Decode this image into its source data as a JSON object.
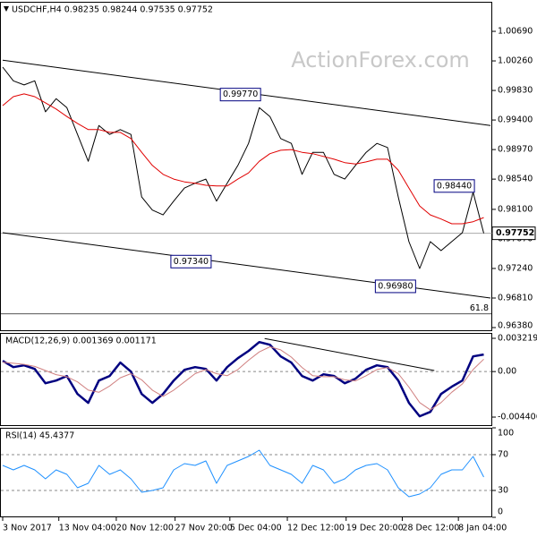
{
  "chart_data": [
    {
      "type": "line",
      "title": "USDCHF,H4 0.98235 0.98244 0.97535 0.97752",
      "watermark": "ActionForex.com",
      "xlim": [
        0,
        365
      ],
      "ylim": [
        0.96328,
        1.0112
      ],
      "yticks": [
        {
          "value": 1.0069,
          "label": "1.00690"
        },
        {
          "value": 1.0026,
          "label": "1.00260"
        },
        {
          "value": 0.9983,
          "label": "0.99830"
        },
        {
          "value": 0.994,
          "label": "0.99400"
        },
        {
          "value": 0.9897,
          "label": "0.98970"
        },
        {
          "value": 0.9854,
          "label": "0.98540"
        },
        {
          "value": 0.981,
          "label": "0.98100"
        },
        {
          "value": 0.9767,
          "label": "0.97670"
        },
        {
          "value": 0.9724,
          "label": "0.97240"
        },
        {
          "value": 0.9681,
          "label": "0.96810"
        },
        {
          "value": 0.9638,
          "label": "0.96380"
        }
      ],
      "x": [
        0,
        8,
        16,
        24,
        32,
        40,
        48,
        56,
        64,
        72,
        80,
        88,
        96,
        104,
        112,
        120,
        128,
        136,
        144,
        152,
        160,
        168,
        176,
        184,
        192,
        200,
        208,
        216,
        224,
        232,
        240,
        248,
        256,
        264,
        272,
        280,
        288,
        296,
        304,
        312,
        320,
        328,
        336,
        344,
        352,
        360
      ],
      "series": [
        {
          "name": "Close",
          "color": "#000000",
          "width": 1,
          "values": [
            1.0017,
            0.9997,
            0.9991,
            0.9997,
            0.9952,
            0.9971,
            0.9958,
            0.9919,
            0.988,
            0.9932,
            0.9919,
            0.9926,
            0.9919,
            0.9828,
            0.9809,
            0.9802,
            0.9822,
            0.9841,
            0.9848,
            0.9854,
            0.9822,
            0.9848,
            0.9874,
            0.9906,
            0.9958,
            0.9945,
            0.9913,
            0.9906,
            0.9861,
            0.9893,
            0.9893,
            0.9861,
            0.9854,
            0.9874,
            0.9893,
            0.9906,
            0.99,
            0.9828,
            0.9763,
            0.9724,
            0.9763,
            0.975,
            0.9763,
            0.9776,
            0.9835,
            0.97752
          ]
        },
        {
          "name": "MA",
          "color": "#e00000",
          "width": 1,
          "values": [
            0.9961,
            0.9974,
            0.9978,
            0.9974,
            0.9965,
            0.9956,
            0.9945,
            0.9935,
            0.9926,
            0.9926,
            0.9922,
            0.9922,
            0.9913,
            0.9893,
            0.9874,
            0.9861,
            0.9854,
            0.985,
            0.9848,
            0.9845,
            0.9844,
            0.9844,
            0.9854,
            0.9863,
            0.988,
            0.9891,
            0.9896,
            0.9897,
            0.9893,
            0.9891,
            0.9887,
            0.9883,
            0.9878,
            0.9876,
            0.9879,
            0.9883,
            0.9883,
            0.9867,
            0.9841,
            0.9815,
            0.9802,
            0.9796,
            0.9789,
            0.9789,
            0.9792,
            0.9798
          ]
        }
      ],
      "trendlines": [
        {
          "x": [
            0,
            365
          ],
          "values": [
            1.0027,
            0.9932
          ]
        },
        {
          "x": [
            0,
            365
          ],
          "values": [
            0.9776,
            0.9681
          ]
        }
      ],
      "level": {
        "value": 0.9658,
        "label": "61.8"
      },
      "last_price": {
        "value": 0.97752,
        "label": "0.97752"
      },
      "annotations": [
        {
          "x": 158,
          "value": 0.9734,
          "label": "0.97340"
        },
        {
          "x": 195,
          "value": 0.9977,
          "label": "0.99770"
        },
        {
          "x": 311,
          "value": 0.9698,
          "label": "0.96980"
        },
        {
          "x": 355,
          "value": 0.9844,
          "label": "0.98440"
        }
      ]
    },
    {
      "type": "line",
      "title": "MACD(12,26,9) 0.001369 0.001171",
      "xlim": [
        0,
        365
      ],
      "ylim": [
        -0.00527,
        0.00374
      ],
      "yticks": [
        0.003219,
        {
          "value": 0,
          "label": "0.00"
        },
        -0.004406
      ],
      "reference_lines": [
        0
      ],
      "x": [
        0,
        8,
        16,
        24,
        32,
        40,
        48,
        56,
        64,
        72,
        80,
        88,
        96,
        104,
        112,
        120,
        128,
        136,
        144,
        152,
        160,
        168,
        176,
        184,
        192,
        200,
        208,
        216,
        224,
        232,
        240,
        248,
        256,
        264,
        272,
        280,
        288,
        296,
        304,
        312,
        320,
        328,
        336,
        344,
        352,
        360
      ],
      "series": [
        {
          "name": "MACD",
          "color": "#000080",
          "width": 2.5,
          "values": [
            0.00104,
            0.00043,
            0.0006,
            0.00026,
            -0.00113,
            -0.00087,
            -0.00043,
            -0.00217,
            -0.00303,
            -0.00087,
            -0.00043,
            0.00087,
            0,
            -0.00217,
            -0.00303,
            -0.00217,
            -0.00087,
            0.00017,
            0.00043,
            0.00026,
            -0.00087,
            0.00043,
            0.0013,
            0.002,
            0.00286,
            0.0026,
            0.00147,
            0.00087,
            -0.00043,
            -0.00087,
            -0.00026,
            -0.00043,
            -0.00113,
            -0.00069,
            0.00017,
            0.0006,
            0.00043,
            -0.00087,
            -0.00303,
            -0.00433,
            -0.0039,
            -0.00217,
            -0.00147,
            -0.00087,
            0.00147,
            0.00165
          ]
        },
        {
          "name": "Signal",
          "color": "#d08080",
          "width": 1,
          "values": [
            0.0009,
            0.0008,
            0.0007,
            0.0005,
            0.0001,
            -0.0003,
            -0.0005,
            -0.001,
            -0.0018,
            -0.002,
            -0.0014,
            -0.0006,
            -0.0002,
            -0.0008,
            -0.0018,
            -0.0024,
            -0.0018,
            -0.001,
            -0.0002,
            0.0002,
            -0.0002,
            -0.0004,
            0.0002,
            0.0011,
            0.0019,
            0.0024,
            0.0021,
            0.0014,
            0.0004,
            -0.0004,
            -0.0005,
            -0.0005,
            -0.0008,
            -0.0009,
            -0.0004,
            0.0002,
            0.0004,
            -0.0002,
            -0.0015,
            -0.003,
            -0.0037,
            -0.003,
            -0.002,
            -0.0012,
            0.0002,
            0.0012
          ]
        }
      ],
      "trendlines": [
        {
          "x": [
            196,
            323
          ],
          "values": [
            0.0032,
            0.0001
          ]
        }
      ]
    },
    {
      "type": "line",
      "title": "RSI(14) 45.4377",
      "xlim": [
        0,
        365
      ],
      "ylim": [
        0,
        100
      ],
      "yticks": [
        100,
        70,
        30,
        0
      ],
      "reference_lines": [
        70,
        30
      ],
      "xticks": [
        {
          "value": 0,
          "label": "3 Nov 2017"
        },
        {
          "value": 42,
          "label": "13 Nov 04:00"
        },
        {
          "value": 85,
          "label": "20 Nov 12:00"
        },
        {
          "value": 129,
          "label": "27 Nov 20:00"
        },
        {
          "value": 170,
          "label": "5 Dec 04:00"
        },
        {
          "value": 213,
          "label": "12 Dec 12:00"
        },
        {
          "value": 257,
          "label": "19 Dec 20:00"
        },
        {
          "value": 299,
          "label": "28 Dec 12:00"
        },
        {
          "value": 341,
          "label": "8 Jan 04:00"
        }
      ],
      "x": [
        0,
        8,
        16,
        24,
        32,
        40,
        48,
        56,
        64,
        72,
        80,
        88,
        96,
        104,
        112,
        120,
        128,
        136,
        144,
        152,
        160,
        168,
        176,
        184,
        192,
        200,
        208,
        216,
        224,
        232,
        240,
        248,
        256,
        264,
        272,
        280,
        288,
        296,
        304,
        312,
        320,
        328,
        336,
        344,
        352,
        360
      ],
      "series": [
        {
          "name": "RSI",
          "color": "#1e90ff",
          "width": 1,
          "values": [
            58,
            53,
            58,
            53,
            43,
            53,
            48,
            33,
            38,
            58,
            48,
            53,
            43,
            28,
            30,
            33,
            53,
            60,
            58,
            63,
            38,
            58,
            63,
            68,
            75,
            58,
            53,
            48,
            38,
            58,
            53,
            38,
            43,
            53,
            58,
            60,
            53,
            33,
            23,
            26,
            33,
            48,
            53,
            53,
            68,
            45
          ]
        }
      ]
    }
  ]
}
